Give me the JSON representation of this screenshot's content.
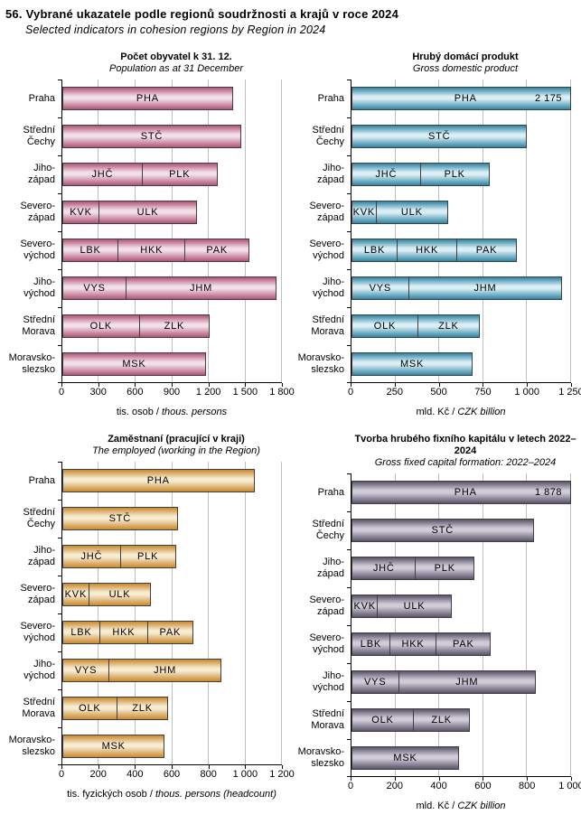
{
  "header": {
    "number": "56.",
    "title_cs": "Vybrané ukazatele podle regionů soudržnosti a krajů v roce 2024",
    "title_en": "Selected indicators in cohesion regions by Region in 2024"
  },
  "chart_data": [
    {
      "type": "bar",
      "title": "Počet obyvatel k 31. 12.",
      "subtitle": "Population as at 31 December",
      "xlabel_cs": "tis. osob /",
      "xlabel_en": "thous. persons",
      "xlim": [
        0,
        1800
      ],
      "xticks": [
        0,
        300,
        600,
        900,
        1200,
        1500,
        1800
      ],
      "xtick_labels": [
        "0",
        "300",
        "600",
        "900",
        "1 200",
        "1 500",
        "1 800"
      ],
      "grid": true,
      "colors": {
        "dark": "#b25378",
        "light": "#f2dfe7"
      },
      "categories": [
        [
          "Praha"
        ],
        [
          "Střední",
          "Čechy"
        ],
        [
          "Jiho-",
          "západ"
        ],
        [
          "Severo-",
          "západ"
        ],
        [
          "Severo-",
          "východ"
        ],
        [
          "Jiho-",
          "východ"
        ],
        [
          "Střední",
          "Morava"
        ],
        [
          "Moravsko-",
          "slezsko"
        ]
      ],
      "rows": [
        {
          "segments": [
            {
              "code": "PHA",
              "value": 1398
            }
          ]
        },
        {
          "segments": [
            {
              "code": "STČ",
              "value": 1466
            }
          ]
        },
        {
          "segments": [
            {
              "code": "JHČ",
              "value": 650
            },
            {
              "code": "PLK",
              "value": 623
            }
          ]
        },
        {
          "segments": [
            {
              "code": "KVK",
              "value": 293
            },
            {
              "code": "ULK",
              "value": 811
            }
          ]
        },
        {
          "segments": [
            {
              "code": "LBK",
              "value": 450
            },
            {
              "code": "HKK",
              "value": 556
            },
            {
              "code": "PAK",
              "value": 527
            }
          ]
        },
        {
          "segments": [
            {
              "code": "VYS",
              "value": 516
            },
            {
              "code": "JHM",
              "value": 1240
            }
          ]
        },
        {
          "segments": [
            {
              "code": "OLK",
              "value": 628
            },
            {
              "code": "ZLK",
              "value": 580
            }
          ]
        },
        {
          "segments": [
            {
              "code": "MSK",
              "value": 1177
            }
          ]
        }
      ]
    },
    {
      "type": "bar",
      "title": "Hrubý domácí produkt",
      "subtitle": "Gross domestic product",
      "xlabel_cs": "mld. Kč /",
      "xlabel_en": "CZK billion",
      "xlim": [
        0,
        1250
      ],
      "xticks": [
        0,
        250,
        500,
        750,
        1000,
        1250
      ],
      "xtick_labels": [
        "0",
        "250",
        "500",
        "750",
        "1 000",
        "1 250"
      ],
      "grid": true,
      "colors": {
        "dark": "#2e85a4",
        "light": "#daeef5"
      },
      "categories": [
        [
          "Praha"
        ],
        [
          "Střední",
          "Čechy"
        ],
        [
          "Jiho-",
          "západ"
        ],
        [
          "Severo-",
          "západ"
        ],
        [
          "Severo-",
          "východ"
        ],
        [
          "Jiho-",
          "východ"
        ],
        [
          "Střední",
          "Morava"
        ],
        [
          "Moravsko-",
          "slezsko"
        ]
      ],
      "rows": [
        {
          "clipped": true,
          "value_label": "2 175",
          "segments": [
            {
              "code": "PHA",
              "value": 2175
            }
          ]
        },
        {
          "segments": [
            {
              "code": "STČ",
              "value": 1000
            }
          ]
        },
        {
          "segments": [
            {
              "code": "JHČ",
              "value": 390
            },
            {
              "code": "PLK",
              "value": 395
            }
          ]
        },
        {
          "segments": [
            {
              "code": "KVK",
              "value": 135
            },
            {
              "code": "ULK",
              "value": 415
            }
          ]
        },
        {
          "segments": [
            {
              "code": "LBK",
              "value": 255
            },
            {
              "code": "HKK",
              "value": 345
            },
            {
              "code": "PAK",
              "value": 340
            }
          ]
        },
        {
          "segments": [
            {
              "code": "VYS",
              "value": 320
            },
            {
              "code": "JHM",
              "value": 880
            }
          ]
        },
        {
          "segments": [
            {
              "code": "OLK",
              "value": 375
            },
            {
              "code": "ZLK",
              "value": 355
            }
          ]
        },
        {
          "segments": [
            {
              "code": "MSK",
              "value": 690
            }
          ]
        }
      ]
    },
    {
      "type": "bar",
      "title": "Zaměstnaní (pracující v kraji)",
      "subtitle": "The employed (working in the Region)",
      "xlabel_cs": "tis. fyzických osob /",
      "xlabel_en": "thous. persons (headcount)",
      "xlim": [
        0,
        1200
      ],
      "xticks": [
        0,
        200,
        400,
        600,
        800,
        1000,
        1200
      ],
      "xtick_labels": [
        "0",
        "200",
        "400",
        "600",
        "800",
        "1 000",
        "1 200"
      ],
      "grid": true,
      "colors": {
        "dark": "#c98a2f",
        "light": "#f7ebd2"
      },
      "categories": [
        [
          "Praha"
        ],
        [
          "Střední",
          "Čechy"
        ],
        [
          "Jiho-",
          "západ"
        ],
        [
          "Severo-",
          "západ"
        ],
        [
          "Severo-",
          "východ"
        ],
        [
          "Jiho-",
          "východ"
        ],
        [
          "Střední",
          "Morava"
        ],
        [
          "Moravsko-",
          "slezsko"
        ]
      ],
      "rows": [
        {
          "segments": [
            {
              "code": "PHA",
              "value": 1050
            }
          ]
        },
        {
          "segments": [
            {
              "code": "STČ",
              "value": 630
            }
          ]
        },
        {
          "segments": [
            {
              "code": "JHČ",
              "value": 315
            },
            {
              "code": "PLK",
              "value": 305
            }
          ]
        },
        {
          "segments": [
            {
              "code": "KVK",
              "value": 140
            },
            {
              "code": "ULK",
              "value": 345
            }
          ]
        },
        {
          "segments": [
            {
              "code": "LBK",
              "value": 200
            },
            {
              "code": "HKK",
              "value": 265
            },
            {
              "code": "PAK",
              "value": 250
            }
          ]
        },
        {
          "segments": [
            {
              "code": "VYS",
              "value": 250
            },
            {
              "code": "JHM",
              "value": 620
            }
          ]
        },
        {
          "segments": [
            {
              "code": "OLK",
              "value": 295
            },
            {
              "code": "ZLK",
              "value": 285
            }
          ]
        },
        {
          "segments": [
            {
              "code": "MSK",
              "value": 560
            }
          ]
        }
      ]
    },
    {
      "type": "bar",
      "title": "Tvorba hrubého fixního kapitálu v letech 2022–2024",
      "subtitle": "Gross fixed capital formation: 2022–2024",
      "xlabel_cs": "mld. Kč /",
      "xlabel_en": "CZK billion",
      "xlim": [
        0,
        1000
      ],
      "xticks": [
        0,
        200,
        400,
        600,
        800,
        1000
      ],
      "xtick_labels": [
        "0",
        "200",
        "400",
        "600",
        "800",
        "1 000"
      ],
      "grid": true,
      "colors": {
        "dark": "#5b5369",
        "light": "#cfccd8"
      },
      "categories": [
        [
          "Praha"
        ],
        [
          "Střední",
          "Čechy"
        ],
        [
          "Jiho-",
          "západ"
        ],
        [
          "Severo-",
          "západ"
        ],
        [
          "Severo-",
          "východ"
        ],
        [
          "Jiho-",
          "východ"
        ],
        [
          "Střední",
          "Morava"
        ],
        [
          "Moravsko-",
          "slezsko"
        ]
      ],
      "rows": [
        {
          "clipped": true,
          "value_label": "1 878",
          "segments": [
            {
              "code": "PHA",
              "value": 1878
            }
          ]
        },
        {
          "segments": [
            {
              "code": "STČ",
              "value": 830
            }
          ]
        },
        {
          "segments": [
            {
              "code": "JHČ",
              "value": 290
            },
            {
              "code": "PLK",
              "value": 270
            }
          ]
        },
        {
          "segments": [
            {
              "code": "KVK",
              "value": 115
            },
            {
              "code": "ULK",
              "value": 340
            }
          ]
        },
        {
          "segments": [
            {
              "code": "LBK",
              "value": 170
            },
            {
              "code": "HKK",
              "value": 215
            },
            {
              "code": "PAK",
              "value": 250
            }
          ]
        },
        {
          "segments": [
            {
              "code": "VYS",
              "value": 210
            },
            {
              "code": "JHM",
              "value": 630
            }
          ]
        },
        {
          "segments": [
            {
              "code": "OLK",
              "value": 280
            },
            {
              "code": "ZLK",
              "value": 260
            }
          ]
        },
        {
          "segments": [
            {
              "code": "MSK",
              "value": 490
            }
          ]
        }
      ]
    }
  ]
}
